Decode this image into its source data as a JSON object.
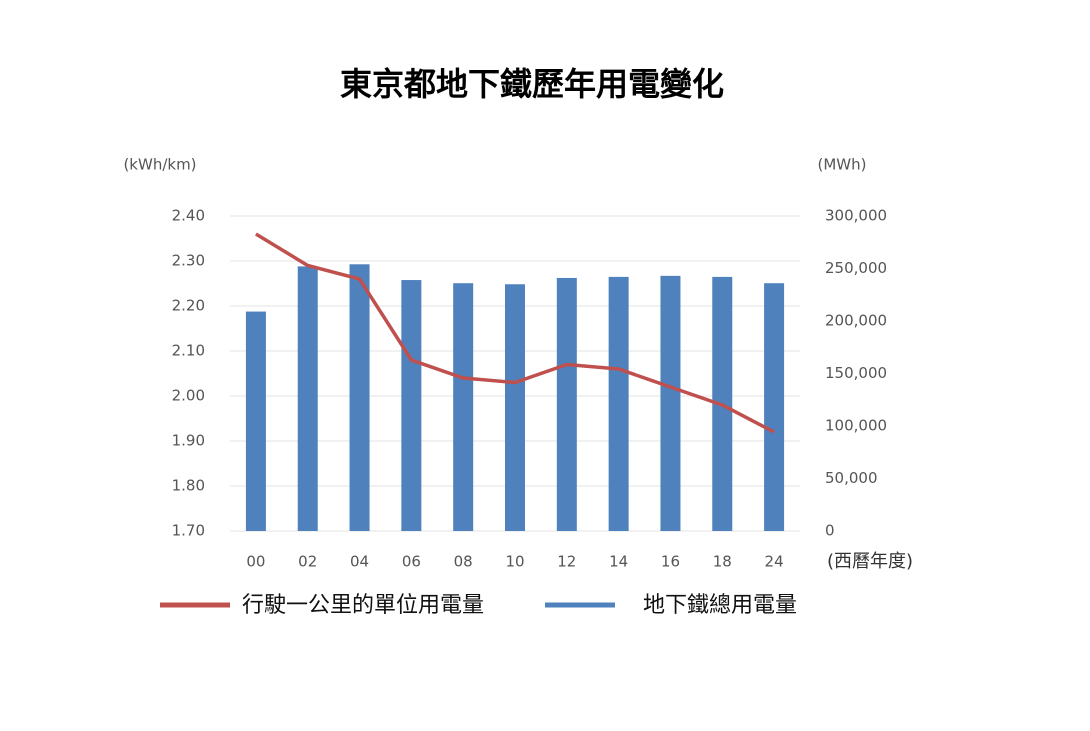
{
  "chart_data": {
    "type": "bar+line",
    "title": "東京都地下鐵歷年用電變化",
    "y_label": "(kWh/km)",
    "y2_label": "(MWh)",
    "x_label": "(西曆年度)",
    "categories": [
      "00",
      "02",
      "04",
      "06",
      "08",
      "10",
      "12",
      "14",
      "16",
      "18",
      "24"
    ],
    "ylim": [
      1.7,
      2.4
    ],
    "yticks": [
      {
        "value": 1.7,
        "label": "1.70"
      },
      {
        "value": 1.8,
        "label": "1.80"
      },
      {
        "value": 1.9,
        "label": "1.90"
      },
      {
        "value": 2.0,
        "label": "2.00"
      },
      {
        "value": 2.1,
        "label": "2.10"
      },
      {
        "value": 2.2,
        "label": "2.20"
      },
      {
        "value": 2.3,
        "label": "2.30"
      },
      {
        "value": 2.4,
        "label": "2.40"
      }
    ],
    "y2lim": [
      0,
      300000
    ],
    "y2ticks": [
      0,
      {
        "value": 50000,
        "label": "50,000"
      },
      {
        "value": 100000,
        "label": "100,000"
      },
      {
        "value": 150000,
        "label": "150,000"
      },
      {
        "value": 200000,
        "label": "200,000"
      },
      {
        "value": 250000,
        "label": "250,000"
      },
      {
        "value": 300000,
        "label": "300,000"
      }
    ],
    "grid": true,
    "legend": "bottom",
    "series": [
      {
        "name": "行駛一公里的單位用電量",
        "mark": "line",
        "color": "#c0504d",
        "values": [
          2.36,
          2.29,
          2.26,
          2.08,
          2.04,
          2.03,
          2.07,
          2.06,
          2.02,
          1.98,
          1.92
        ]
      },
      {
        "name": "地下鐵總用電量",
        "mark": "bar",
        "axis": "y2",
        "color": "#4f81bd",
        "values": [
          209000,
          252000,
          254000,
          239000,
          236000,
          235000,
          241000,
          242000,
          243000,
          242000,
          236000
        ]
      }
    ]
  }
}
